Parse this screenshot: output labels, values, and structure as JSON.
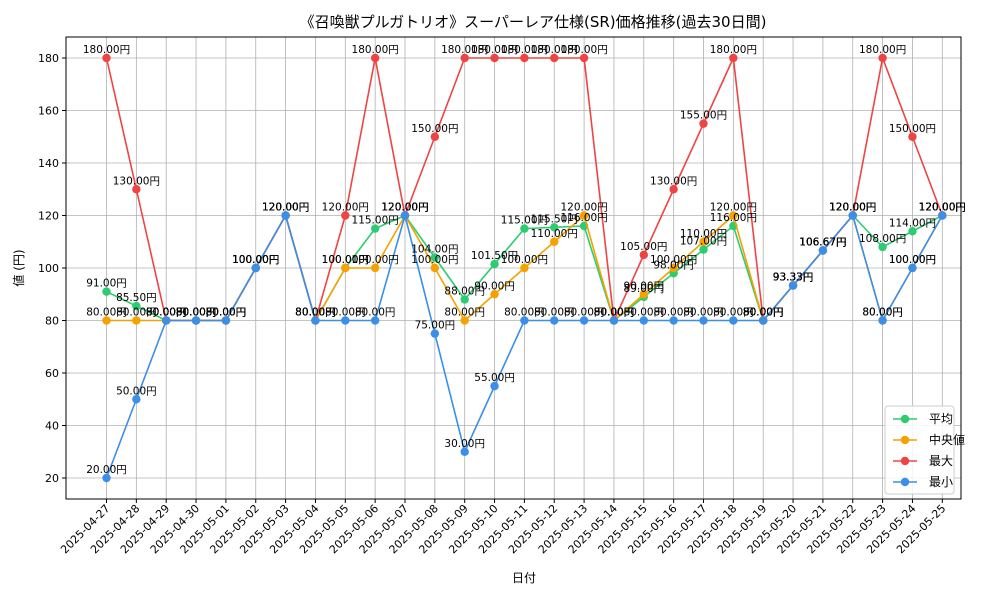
{
  "chart_data": {
    "type": "line",
    "title": "《召喚獣プルガトリオ》スーパーレア仕様(SR)価格推移(過去30日間)",
    "xlabel": "日付",
    "ylabel": "値 (円)",
    "ylim": [
      12,
      188
    ],
    "yticks": [
      20,
      40,
      60,
      80,
      100,
      120,
      140,
      160,
      180
    ],
    "grid": true,
    "legend_position": "lower-right",
    "label_suffix": "円",
    "categories": [
      "2025-04-27",
      "2025-04-28",
      "2025-04-29",
      "2025-04-30",
      "2025-05-01",
      "2025-05-02",
      "2025-05-03",
      "2025-05-04",
      "2025-05-05",
      "2025-05-06",
      "2025-05-07",
      "2025-05-08",
      "2025-05-09",
      "2025-05-10",
      "2025-05-11",
      "2025-05-12",
      "2025-05-13",
      "2025-05-14",
      "2025-05-15",
      "2025-05-16",
      "2025-05-17",
      "2025-05-18",
      "2025-05-19",
      "2025-05-20",
      "2025-05-21",
      "2025-05-22",
      "2025-05-23",
      "2025-05-24",
      "2025-05-25"
    ],
    "series": [
      {
        "name": "平均",
        "color": "#2ecc71",
        "values": [
          91,
          85.5,
          80,
          80,
          80,
          100,
          120,
          80,
          100,
          115,
          120,
          104,
          88,
          101.5,
          115,
          115.5,
          116,
          80,
          89,
          98,
          107,
          116,
          80,
          93.33,
          106.67,
          120,
          108,
          114,
          120
        ]
      },
      {
        "name": "中央値",
        "color": "#f5a100",
        "values": [
          80,
          80,
          80,
          80,
          80,
          100,
          120,
          80,
          100,
          100,
          120,
          100,
          80,
          90,
          100,
          110,
          120,
          80,
          90,
          100,
          110,
          120,
          80,
          93.33,
          106.67,
          120,
          80,
          100,
          120
        ]
      },
      {
        "name": "最大",
        "color": "#ef4444",
        "values": [
          180,
          130,
          80,
          80,
          80,
          100,
          120,
          80,
          120,
          180,
          120,
          150,
          180,
          180,
          180,
          180,
          180,
          80,
          105,
          130,
          155,
          180,
          80,
          93.33,
          106.67,
          120,
          180,
          150,
          120
        ]
      },
      {
        "name": "最小",
        "color": "#3b8fe8",
        "values": [
          20,
          50,
          80,
          80,
          80,
          100,
          120,
          80,
          80,
          80,
          120,
          75,
          30,
          55,
          80,
          80,
          80,
          80,
          80,
          80,
          80,
          80,
          80,
          93.33,
          106.67,
          120,
          80,
          100,
          120
        ]
      }
    ]
  }
}
